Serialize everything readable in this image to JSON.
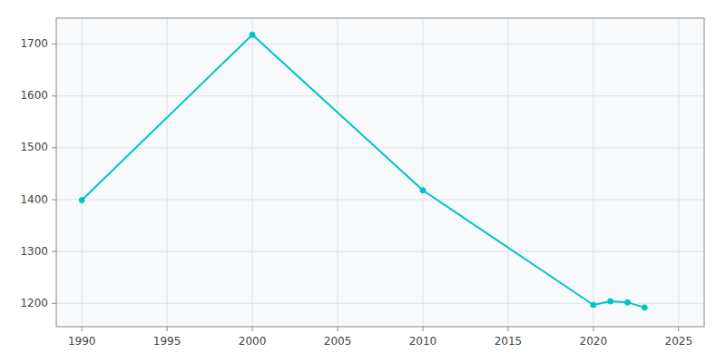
{
  "chart_data": {
    "type": "line",
    "x": [
      1990,
      2000,
      2010,
      2020,
      2021,
      2022,
      2023
    ],
    "values": [
      1399,
      1718,
      1418,
      1197,
      1204,
      1202,
      1192
    ],
    "color": "#00C4C4",
    "marker": "circle",
    "xlim": [
      1988.5,
      2026.5
    ],
    "ylim": [
      1155,
      1750
    ],
    "xticks": [
      1990,
      1995,
      2000,
      2005,
      2010,
      2015,
      2020,
      2025
    ],
    "yticks": [
      1200,
      1300,
      1400,
      1500,
      1600,
      1700
    ],
    "grid": true
  }
}
